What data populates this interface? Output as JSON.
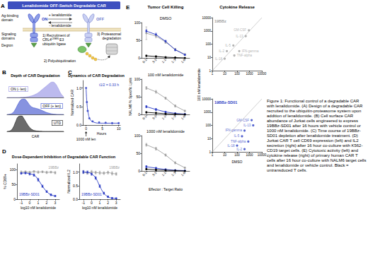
{
  "figure": {
    "caption": "Figure 1: Functional control of a degradable CAR with lenalidomide. (A) Design of a degradable CAR recruited to the ubiquitin-proteasome system upon addition of lenalidomide. (B) Cell surface CAR abundance of Jurkat cells engineered to express 19BBz-SD01 after 16 hours with vehicle control or 1000 nM lenalidomide. (C) Time course of 19BBz-SD01 depletion after lenalidomide treatment. (D) Jurkat CAR T cell CD69 expression (left) and IL2 secretion (right) after 16 hour co-culture with K562-CD19 target cells. (E) Cytotoxic activity (left) and cytokine release (right) of primary human CAR T cells after 16 hour co-culture with NALM6 target cells and lenalidomide or vehicle control. Black = untransduced T cells."
  },
  "diagram": {
    "panel": "A",
    "title": "Lenalidomide OFF-Switch Degradable CAR",
    "domain_labels": [
      [
        "Ag-binding",
        "domain"
      ],
      [
        "Signaling",
        "domains"
      ],
      [
        "Degron"
      ]
    ],
    "states": [
      "ON",
      "OFF"
    ],
    "arrows": [
      "+ lenalidomide",
      "- lenalidomide"
    ],
    "steps": [
      [
        "1) Recruitment of",
        {
          "base": "CRL4",
          "sup": "CRBN",
          "after": " E3"
        },
        "ubiquitin ligase"
      ],
      [
        "2) Polyubiquitination"
      ],
      [
        "3) Proteasomal",
        "degradation"
      ]
    ]
  },
  "chart_data": [
    {
      "panel": "B",
      "type": "area",
      "title": "Depth of CAR Degradation",
      "xlabel": "CAR",
      "x": [
        0,
        1,
        2,
        3,
        4,
        5,
        6,
        7,
        8,
        9,
        10,
        11,
        12,
        13,
        14,
        15,
        16,
        17,
        18,
        19,
        20
      ],
      "xlim": [
        0,
        20
      ],
      "ylim": [
        0,
        1
      ],
      "tick_labels": false,
      "grid": false,
      "series": [
        {
          "name": "ON (- len)",
          "color": "#a6a3e8",
          "values": [
            0,
            0,
            0,
            0,
            0,
            0.01,
            0.02,
            0.04,
            0.07,
            0.12,
            0.2,
            0.3,
            0.45,
            0.6,
            0.75,
            0.9,
            1.0,
            0.9,
            0.6,
            0.25,
            0.05
          ]
        },
        {
          "name": "OFF (+ len)",
          "color": "#5f6fd6",
          "values": [
            0,
            0.02,
            0.1,
            0.35,
            0.7,
            0.95,
            1.0,
            0.85,
            0.6,
            0.45,
            0.4,
            0.35,
            0.28,
            0.2,
            0.12,
            0.07,
            0.03,
            0.01,
            0,
            0,
            0
          ]
        },
        {
          "name": "UTD",
          "color": "#3a3a3a",
          "values": [
            0,
            0.03,
            0.2,
            0.6,
            0.95,
            1.0,
            0.8,
            0.5,
            0.25,
            0.1,
            0.04,
            0.02,
            0.01,
            0,
            0,
            0,
            0,
            0,
            0,
            0,
            0
          ]
        }
      ]
    },
    {
      "panel": "C",
      "type": "scatter",
      "title": "Dynamics of CAR Degradation",
      "xlabel": "Hours",
      "ylabel": "Normalized CAR",
      "xlim": [
        -1,
        10.5
      ],
      "xticks": [
        0,
        5,
        10
      ],
      "ylim": [
        0,
        1.2
      ],
      "yticks": [
        {
          "value": 0,
          "label": "0.0"
        },
        {
          "value": 0.5,
          "label": "0.5"
        },
        {
          "value": 1,
          "label": "1.0"
        }
      ],
      "grid": false,
      "annotations": [
        {
          "text": "t1/2 = 0.33 h"
        },
        {
          "text": "1000 nM len",
          "x": 0
        }
      ],
      "series": [
        {
          "type": "scatter",
          "color": "#2b3cc4",
          "marker": "circle",
          "x": [
            0,
            0.25,
            0.5,
            1,
            2,
            4,
            6,
            8,
            10
          ],
          "values": [
            1.0,
            0.62,
            0.38,
            0.18,
            0.1,
            0.07,
            0.06,
            0.05,
            0.05
          ]
        },
        {
          "type": "line",
          "color": "#2b3cc4",
          "line_style": "solid",
          "x": [
            0,
            0.1,
            0.2,
            0.33,
            0.5,
            0.75,
            1,
            1.5,
            2,
            3,
            4,
            6,
            8,
            10
          ],
          "values": [
            1.0,
            0.82,
            0.68,
            0.53,
            0.4,
            0.28,
            0.2,
            0.12,
            0.09,
            0.06,
            0.05,
            0.05,
            0.05,
            0.05
          ]
        }
      ]
    },
    {
      "panel": "D",
      "title": "Dose-Dependent Inhibition of Degradable CAR Function",
      "charts": [
        {
          "type": "line",
          "xlabel": "log10 nM lenalidomide",
          "ylabel": "% CD69+",
          "x": [
            -1,
            -0.5,
            0,
            0.5,
            1,
            1.5,
            2,
            2.5,
            3
          ],
          "xlim": [
            -1.5,
            3.5
          ],
          "xticks": [
            -1,
            0,
            1,
            2,
            3
          ],
          "ylim": [
            0,
            120
          ],
          "yticks": [
            0,
            50,
            100
          ],
          "grid": false,
          "series": [
            {
              "name": "19BBz",
              "color": "#a0a0a0",
              "marker": "circle",
              "values": [
                92,
                93,
                91,
                94,
                92,
                93,
                91,
                92,
                90
              ],
              "errors": [
                4,
                3,
                4,
                3,
                4,
                3,
                4,
                3,
                4
              ]
            },
            {
              "name": "19BBz-SD01",
              "color": "#2b3cc4",
              "marker": "circle",
              "values": [
                88,
                89,
                86,
                82,
                66,
                44,
                26,
                15,
                11
              ],
              "errors": [
                3,
                3,
                4,
                4,
                5,
                4,
                3,
                3,
                2
              ]
            }
          ]
        },
        {
          "type": "line",
          "xlabel": "log10 nM lenalidomide",
          "ylabel": "Normalized IL2",
          "x": [
            -1,
            -0.5,
            0,
            0.5,
            1,
            1.5,
            2,
            2.5,
            3
          ],
          "xlim": [
            -1.5,
            3.5
          ],
          "xticks": [
            -1,
            0,
            1,
            2,
            3
          ],
          "ylim": [
            0,
            1.3
          ],
          "yticks": [
            {
              "value": 0,
              "label": "0.0"
            },
            {
              "value": 0.5,
              "label": "0.5"
            },
            {
              "value": 1,
              "label": "1.0"
            }
          ],
          "grid": false,
          "series": [
            {
              "name": "19BBz",
              "color": "#a0a0a0",
              "marker": "circle",
              "values": [
                1.0,
                0.97,
                1.0,
                0.98,
                0.97,
                0.96,
                0.98,
                0.95,
                0.93
              ],
              "errors": [
                0.06,
                0.05,
                0.06,
                0.05,
                0.06,
                0.05,
                0.05,
                0.06,
                0.05
              ]
            },
            {
              "name": "19BBz-SD01",
              "color": "#2b3cc4",
              "marker": "circle",
              "values": [
                1.0,
                0.99,
                0.93,
                0.78,
                0.48,
                0.22,
                0.09,
                0.04,
                0.03
              ],
              "errors": [
                0.05,
                0.05,
                0.05,
                0.05,
                0.05,
                0.04,
                0.03,
                0.02,
                0.02
              ]
            }
          ]
        }
      ]
    },
    {
      "panel": "E",
      "title": "Tumor Cell Killing",
      "xlabel": "Effector : Target Ratio",
      "ylabel": "NALM6 % Specific Lysis",
      "charts": [
        {
          "type": "line",
          "subtitle": "DMSO",
          "categories": [
            "9-1",
            "3-1",
            "1-1",
            "1-3",
            "1-9"
          ],
          "ylim": [
            0,
            100
          ],
          "yticks": [
            0,
            50,
            100
          ],
          "grid": false,
          "series": [
            {
              "color": "#a0a0a0",
              "marker": "circle",
              "values": [
                70,
                62,
                45,
                24,
                10
              ],
              "errors": [
                18,
                5,
                4,
                3,
                2
              ]
            },
            {
              "color": "#2b3cc4",
              "marker": "circle",
              "values": [
                76,
                66,
                47,
                23,
                9
              ],
              "errors": [
                4,
                4,
                3,
                3,
                2
              ]
            },
            {
              "color": "#000000",
              "marker": "circle",
              "values": [
                6,
                4,
                2,
                1,
                0
              ],
              "errors": [
                2,
                2,
                1,
                1,
                1
              ]
            }
          ]
        },
        {
          "type": "line",
          "subtitle": "100 nM lenalidomide",
          "categories": [
            "9-1",
            "3-1",
            "1-1",
            "1-3",
            "1-9"
          ],
          "ylim": [
            0,
            100
          ],
          "yticks": [
            0,
            50,
            100
          ],
          "grid": false,
          "series": [
            {
              "color": "#a0a0a0",
              "marker": "circle",
              "values": [
                75,
                64,
                46,
                24,
                10
              ],
              "errors": [
                4,
                4,
                3,
                3,
                2
              ]
            },
            {
              "color": "#2b3cc4",
              "marker": "circle",
              "values": [
                22,
                14,
                7,
                3,
                1
              ],
              "errors": [
                3,
                3,
                2,
                1,
                1
              ]
            },
            {
              "color": "#000000",
              "marker": "circle",
              "values": [
                6,
                4,
                2,
                1,
                0
              ],
              "errors": [
                2,
                2,
                1,
                1,
                1
              ]
            }
          ]
        },
        {
          "type": "line",
          "subtitle": "1000 nM lenalidomide",
          "categories": [
            "9-1",
            "3-1",
            "1-1",
            "1-3",
            "1-9"
          ],
          "ylim": [
            0,
            100
          ],
          "yticks": [
            0,
            50,
            100
          ],
          "grid": false,
          "series": [
            {
              "color": "#a0a0a0",
              "marker": "circle",
              "values": [
                74,
                63,
                45,
                23,
                9
              ],
              "errors": [
                4,
                4,
                3,
                3,
                2
              ]
            },
            {
              "color": "#2b3cc4",
              "marker": "circle",
              "values": [
                12,
                8,
                4,
                2,
                1
              ],
              "errors": [
                3,
                2,
                2,
                1,
                1
              ]
            },
            {
              "color": "#000000",
              "marker": "circle",
              "values": [
                5,
                3,
                2,
                1,
                0
              ],
              "errors": [
                2,
                2,
                1,
                1,
                1
              ]
            }
          ]
        }
      ]
    },
    {
      "title": "Cytokine Release",
      "xlabel": "DMSO",
      "ylabel": "100 nM lenalidomide",
      "charts": [
        {
          "type": "scatter",
          "subtitle": "19BBz",
          "color": "#a0a0a0",
          "marker": "circle",
          "log": true,
          "grid": false,
          "xlim": [
            1,
            10000
          ],
          "xticks": [
            1,
            10,
            100,
            1000,
            10000
          ],
          "ylim": [
            1,
            10000
          ],
          "yticks": [
            1,
            10,
            100,
            1000,
            10000
          ],
          "x": [
            900,
            500,
            50,
            15,
            150,
            60,
            10
          ],
          "values": [
            1100,
            400,
            80,
            30,
            30,
            14,
            8
          ],
          "labels": [
            "GM-CSF",
            "IL-13",
            "IL-5",
            "IL-2",
            "IFN-gamma",
            "TNF-alpha",
            "IL-18"
          ]
        },
        {
          "type": "scatter",
          "subtitle": "19BBz-SD01",
          "color": "#2b3cc4",
          "marker": "circle",
          "log": true,
          "grid": false,
          "xlim": [
            1,
            10000
          ],
          "xticks": [
            1,
            10,
            100,
            1000,
            10000
          ],
          "ylim": [
            1,
            10000
          ],
          "yticks": [
            1,
            10,
            100,
            1000,
            10000
          ],
          "x": [
            1500,
            2000,
            400,
            250,
            800,
            100,
            400
          ],
          "values": [
            250,
            100,
            40,
            15,
            6,
            3,
            1.6
          ],
          "labels": [
            "GM-CSF",
            "IL-13",
            "IFN-gamma",
            "IL-5",
            "TNF-alpha",
            "IL-18",
            "IL-2"
          ]
        }
      ]
    }
  ]
}
